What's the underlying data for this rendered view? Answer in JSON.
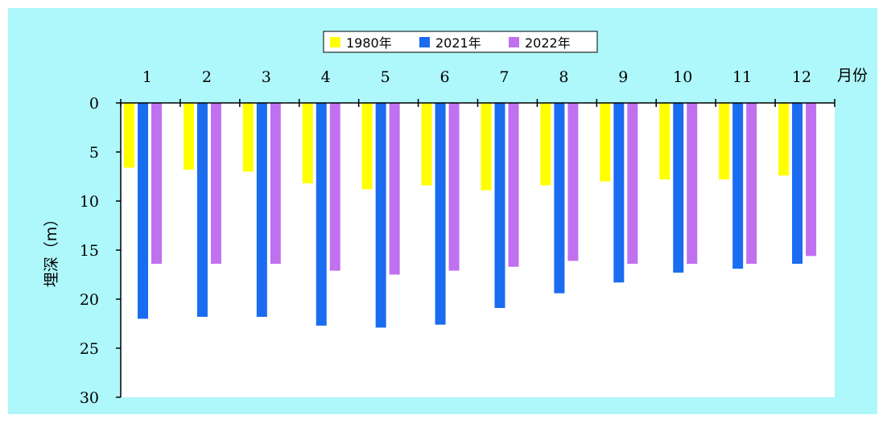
{
  "chart_data": {
    "type": "bar",
    "categories": [
      "1",
      "2",
      "3",
      "4",
      "5",
      "6",
      "7",
      "8",
      "9",
      "10",
      "11",
      "12"
    ],
    "series": [
      {
        "name": "1980年",
        "color": "#ffff00",
        "values": [
          6.6,
          6.8,
          7.0,
          8.2,
          8.8,
          8.4,
          8.9,
          8.4,
          8.0,
          7.8,
          7.8,
          7.4
        ]
      },
      {
        "name": "2021年",
        "color": "#1a6cf0",
        "values": [
          22.0,
          21.8,
          21.8,
          22.7,
          22.9,
          22.6,
          20.9,
          19.4,
          18.3,
          17.3,
          16.9,
          16.4
        ]
      },
      {
        "name": "2022年",
        "color": "#c071f0",
        "values": [
          16.4,
          16.4,
          16.4,
          17.1,
          17.5,
          17.1,
          16.7,
          16.1,
          16.4,
          16.4,
          16.4,
          15.6
        ]
      }
    ],
    "xlabel": "月份",
    "ylabel": "埋深（m）",
    "ylim": [
      0,
      30
    ],
    "yticks": [
      "0",
      "5",
      "10",
      "15",
      "20",
      "25",
      "30"
    ],
    "y_inverted": true,
    "x_axis_position": "top",
    "legend_position": "top-center",
    "grid": false,
    "background": "#aef7fb",
    "plot_background": "#ffffff"
  }
}
